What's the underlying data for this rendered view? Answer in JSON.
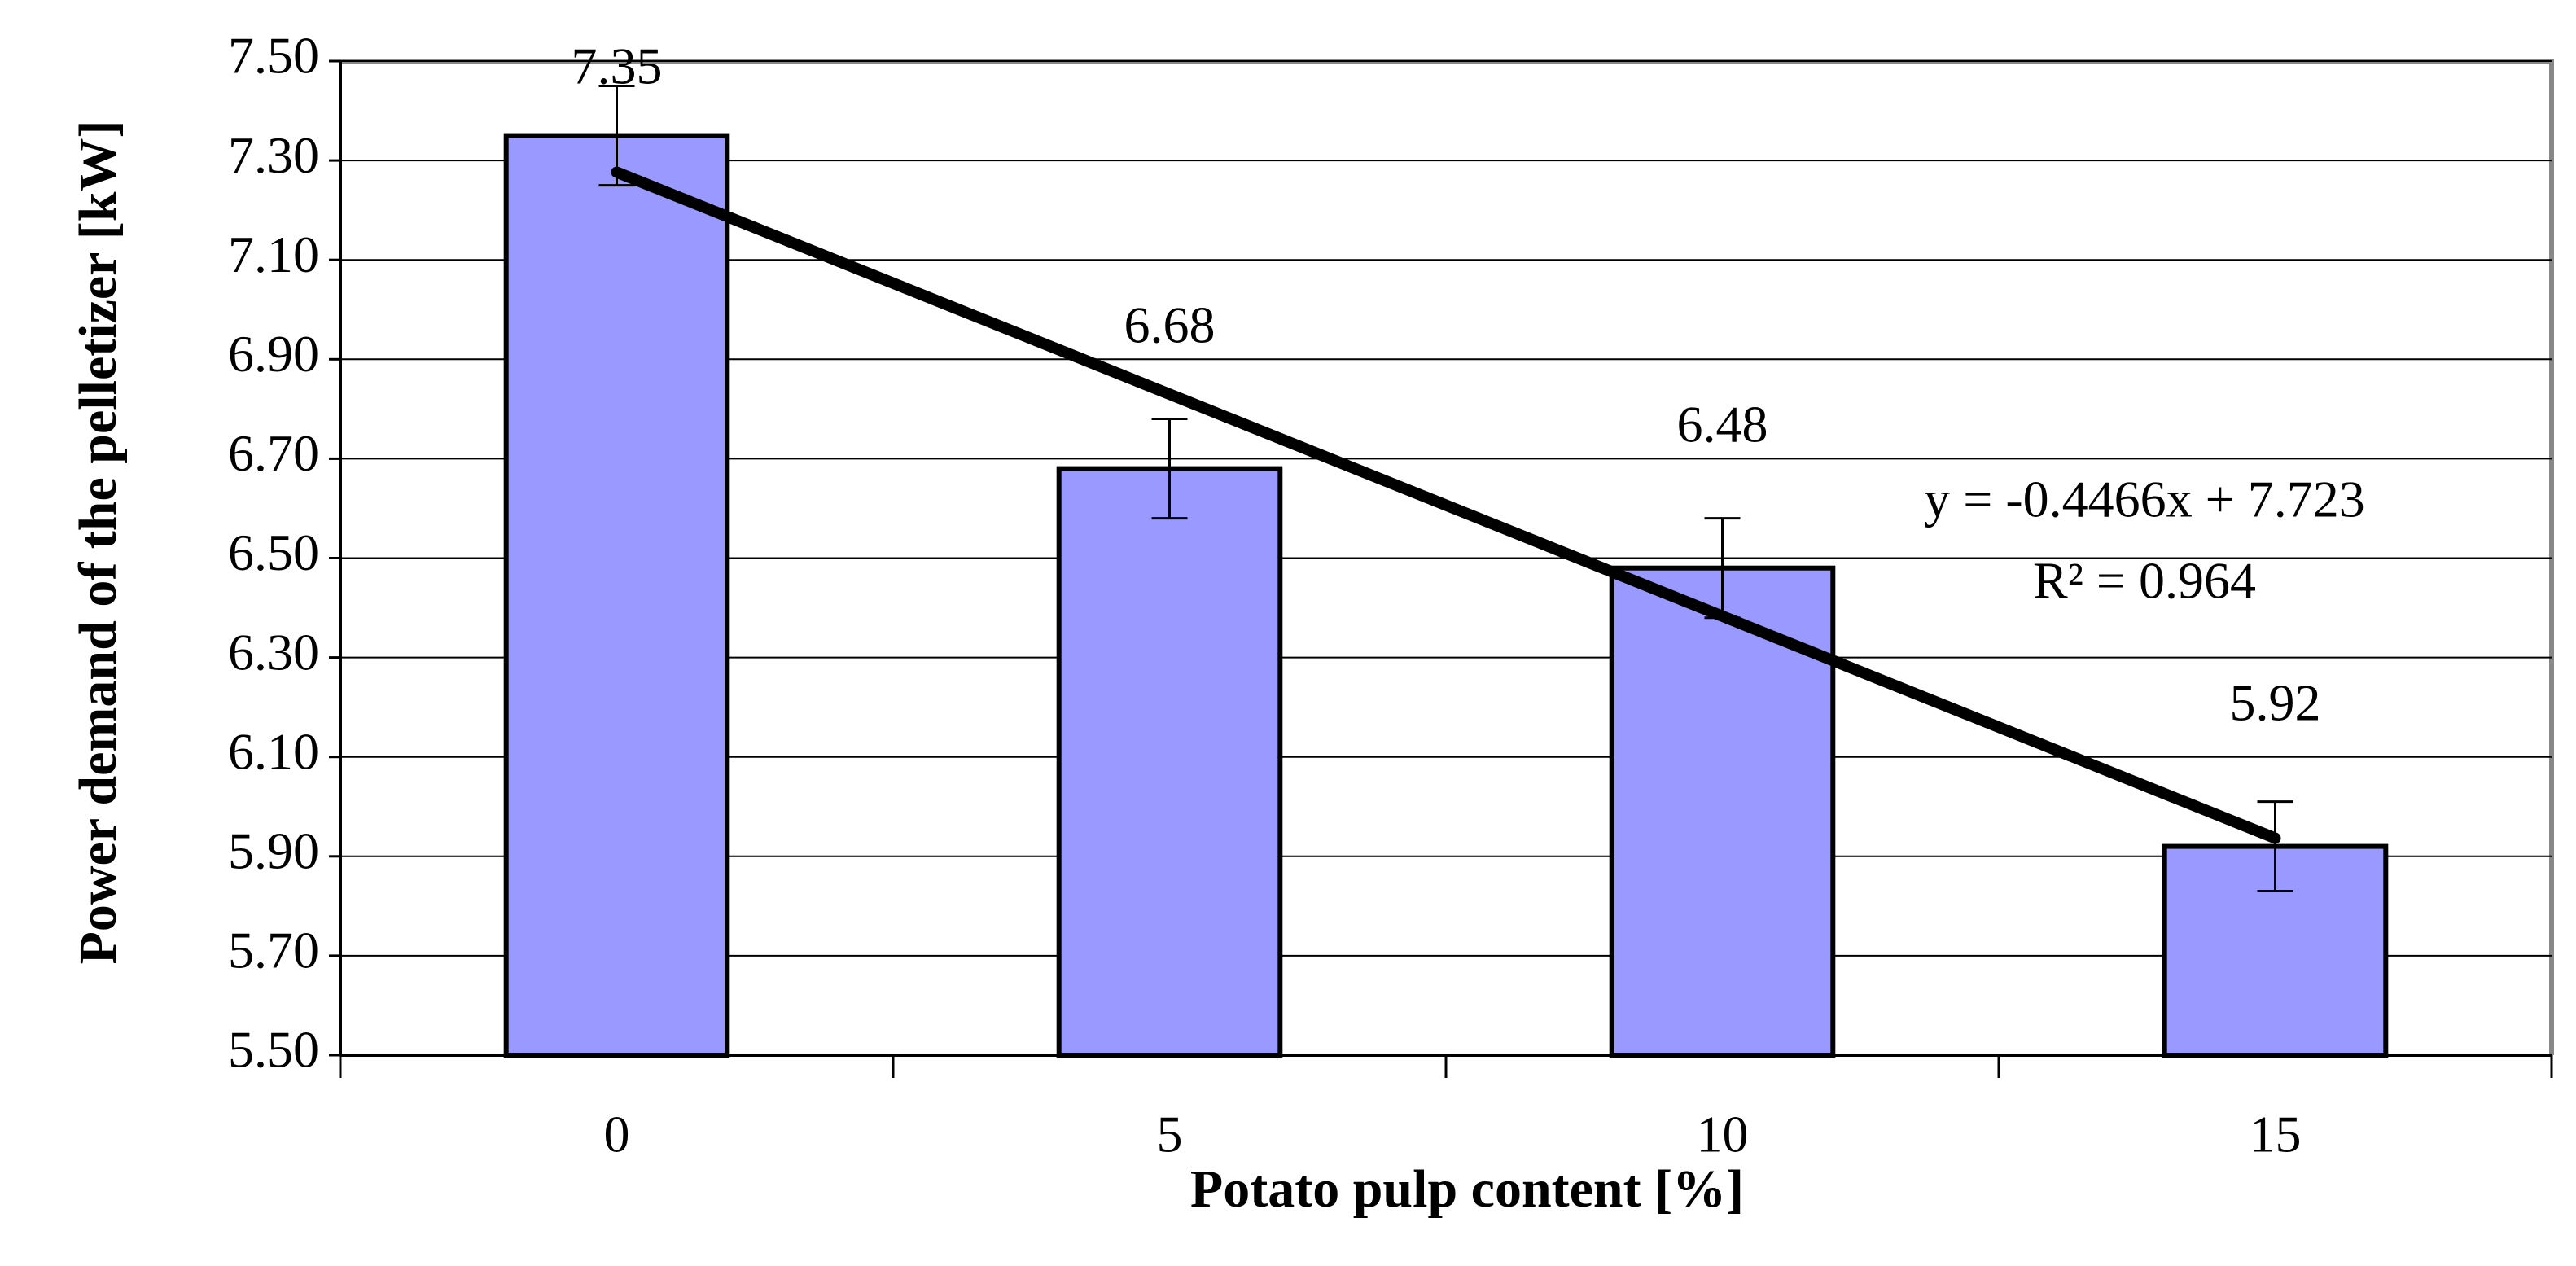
{
  "chart_data": {
    "type": "bar",
    "x_label": "Potato pulp content [%]",
    "y_label": "Power demand of the pelletizer [kW]",
    "categories": [
      "0",
      "5",
      "10",
      "15"
    ],
    "values": [
      7.35,
      6.68,
      6.48,
      5.92
    ],
    "errors": [
      0.1,
      0.1,
      0.1,
      0.09
    ],
    "color": "#9999ff",
    "ylim": [
      5.5,
      7.5
    ],
    "yticks": [
      {
        "value": 5.5,
        "label": "5.50"
      },
      {
        "value": 5.7,
        "label": "5.70"
      },
      {
        "value": 5.9,
        "label": "5.90"
      },
      {
        "value": 6.1,
        "label": "6.10"
      },
      {
        "value": 6.3,
        "label": "6.30"
      },
      {
        "value": 6.5,
        "label": "6.50"
      },
      {
        "value": 6.7,
        "label": "6.70"
      },
      {
        "value": 6.9,
        "label": "6.90"
      },
      {
        "value": 7.1,
        "label": "7.10"
      },
      {
        "value": 7.3,
        "label": "7.30"
      },
      {
        "value": 7.5,
        "label": "7.50"
      }
    ],
    "grid": true,
    "trendline": {
      "slope": -0.4466,
      "intercept": 7.723,
      "equation": "y = -0.4466x + 7.723",
      "r_squared": "R² = 0.964"
    }
  }
}
